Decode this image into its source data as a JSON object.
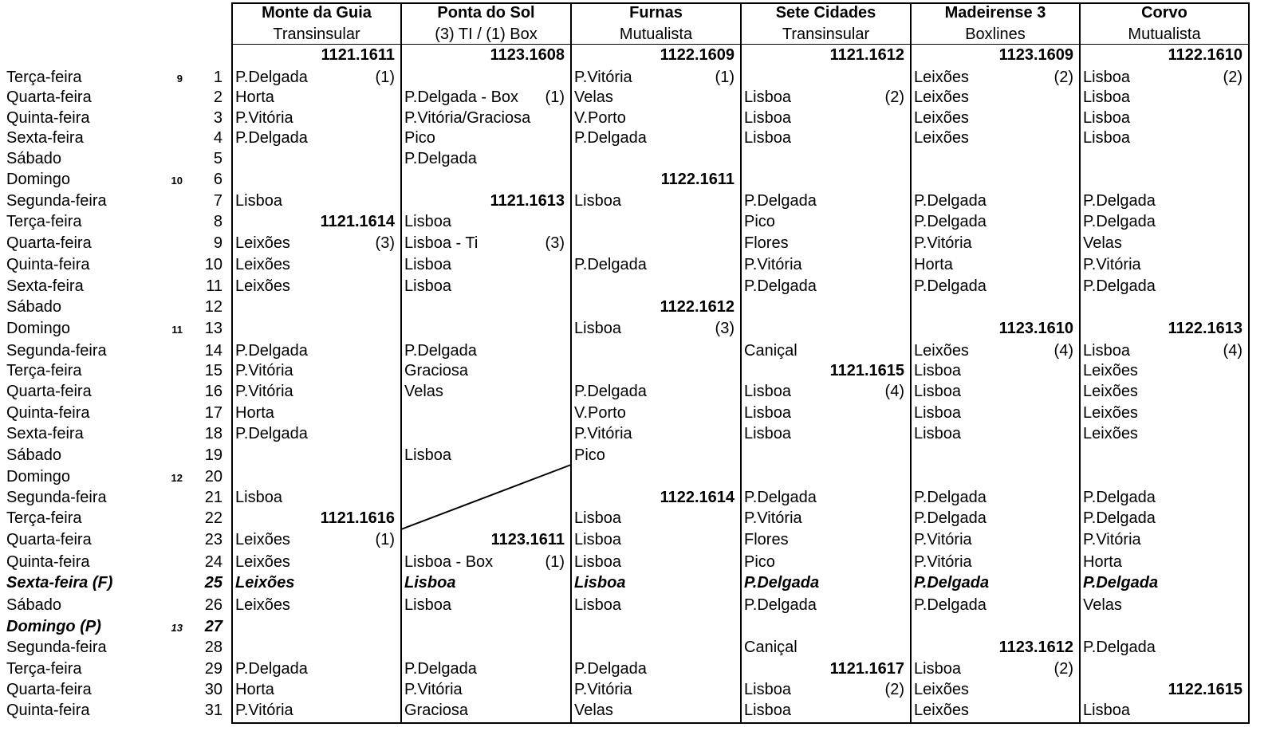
{
  "columns": [
    {
      "name": "Monte da Guia",
      "operator": "Transinsular",
      "voyage": "1121.1611"
    },
    {
      "name": "Ponta do Sol",
      "operator": "(3) TI / (1) Box",
      "voyage": "1123.1608"
    },
    {
      "name": "Furnas",
      "operator": "Mutualista",
      "voyage": "1122.1609"
    },
    {
      "name": "Sete Cidades",
      "operator": "Transinsular",
      "voyage": "1121.1612"
    },
    {
      "name": "Madeirense 3",
      "operator": "Boxlines",
      "voyage": "1123.1609"
    },
    {
      "name": "Corvo",
      "operator": "Mutualista",
      "voyage": "1122.1610"
    }
  ],
  "rows": [
    {
      "weekday": "Terça-feira",
      "week": "9",
      "day": "1",
      "style": "",
      "cells": [
        [
          "P.Delgada",
          "(1)",
          ""
        ],
        [
          "",
          "",
          ""
        ],
        [
          "P.Vitória",
          "(1)",
          ""
        ],
        [
          "",
          "",
          ""
        ],
        [
          "Leixões",
          "(2)",
          ""
        ],
        [
          "Lisboa",
          "(2)",
          ""
        ]
      ]
    },
    {
      "weekday": "Quarta-feira",
      "week": "",
      "day": "2",
      "style": "",
      "cells": [
        [
          "Horta",
          "",
          ""
        ],
        [
          "P.Delgada - Box",
          "(1)",
          ""
        ],
        [
          "Velas",
          "",
          ""
        ],
        [
          "Lisboa",
          "(2)",
          ""
        ],
        [
          "Leixões",
          "",
          ""
        ],
        [
          "Lisboa",
          "",
          ""
        ]
      ]
    },
    {
      "weekday": "Quinta-feira",
      "week": "",
      "day": "3",
      "style": "",
      "cells": [
        [
          "P.Vitória",
          "",
          ""
        ],
        [
          "P.Vitória/Graciosa",
          "",
          ""
        ],
        [
          "V.Porto",
          "",
          ""
        ],
        [
          "Lisboa",
          "",
          ""
        ],
        [
          "Leixões",
          "",
          ""
        ],
        [
          "Lisboa",
          "",
          ""
        ]
      ]
    },
    {
      "weekday": "Sexta-feira",
      "week": "",
      "day": "4",
      "style": "",
      "cells": [
        [
          "P.Delgada",
          "",
          ""
        ],
        [
          "Pico",
          "",
          ""
        ],
        [
          "P.Delgada",
          "",
          ""
        ],
        [
          "Lisboa",
          "",
          ""
        ],
        [
          "Leixões",
          "",
          ""
        ],
        [
          "Lisboa",
          "",
          ""
        ]
      ]
    },
    {
      "weekday": "Sábado",
      "week": "",
      "day": "5",
      "style": "",
      "cells": [
        [
          "",
          "",
          ""
        ],
        [
          "P.Delgada",
          "",
          ""
        ],
        [
          "",
          "",
          ""
        ],
        [
          "",
          "",
          ""
        ],
        [
          "",
          "",
          ""
        ],
        [
          "",
          "",
          ""
        ]
      ]
    },
    {
      "weekday": "Domingo",
      "week": "10",
      "day": "6",
      "style": "",
      "cells": [
        [
          "",
          "",
          ""
        ],
        [
          "",
          "",
          ""
        ],
        [
          "",
          "",
          "1122.1611"
        ],
        [
          "",
          "",
          ""
        ],
        [
          "",
          "",
          ""
        ],
        [
          "",
          "",
          ""
        ]
      ]
    },
    {
      "weekday": "Segunda-feira",
      "week": "",
      "day": "7",
      "style": "",
      "cells": [
        [
          "Lisboa",
          "",
          ""
        ],
        [
          "",
          "",
          "1121.1613"
        ],
        [
          "Lisboa",
          "",
          ""
        ],
        [
          "P.Delgada",
          "",
          ""
        ],
        [
          "P.Delgada",
          "",
          ""
        ],
        [
          "P.Delgada",
          "",
          ""
        ]
      ]
    },
    {
      "weekday": "Terça-feira",
      "week": "",
      "day": "8",
      "style": "",
      "cells": [
        [
          "",
          "",
          "1121.1614"
        ],
        [
          "Lisboa",
          "",
          ""
        ],
        [
          "",
          "",
          ""
        ],
        [
          "Pico",
          "",
          ""
        ],
        [
          "P.Delgada",
          "",
          ""
        ],
        [
          "P.Delgada",
          "",
          ""
        ]
      ]
    },
    {
      "weekday": "Quarta-feira",
      "week": "",
      "day": "9",
      "style": "",
      "cells": [
        [
          "Leixões",
          "(3)",
          ""
        ],
        [
          "Lisboa - Ti",
          "(3)",
          ""
        ],
        [
          "",
          "",
          ""
        ],
        [
          "Flores",
          "",
          ""
        ],
        [
          "P.Vitória",
          "",
          ""
        ],
        [
          "Velas",
          "",
          ""
        ]
      ]
    },
    {
      "weekday": "Quinta-feira",
      "week": "",
      "day": "10",
      "style": "",
      "cells": [
        [
          "Leixões",
          "",
          ""
        ],
        [
          "Lisboa",
          "",
          ""
        ],
        [
          "P.Delgada",
          "",
          ""
        ],
        [
          "P.Vitória",
          "",
          ""
        ],
        [
          "Horta",
          "",
          ""
        ],
        [
          "P.Vitória",
          "",
          ""
        ]
      ]
    },
    {
      "weekday": "Sexta-feira",
      "week": "",
      "day": "11",
      "style": "",
      "cells": [
        [
          "Leixões",
          "",
          ""
        ],
        [
          "Lisboa",
          "",
          ""
        ],
        [
          "",
          "",
          ""
        ],
        [
          "P.Delgada",
          "",
          ""
        ],
        [
          "P.Delgada",
          "",
          ""
        ],
        [
          "P.Delgada",
          "",
          ""
        ]
      ]
    },
    {
      "weekday": "Sábado",
      "week": "",
      "day": "12",
      "style": "",
      "cells": [
        [
          "",
          "",
          ""
        ],
        [
          "",
          "",
          ""
        ],
        [
          "",
          "",
          "1122.1612"
        ],
        [
          "",
          "",
          ""
        ],
        [
          "",
          "",
          ""
        ],
        [
          "",
          "",
          ""
        ]
      ]
    },
    {
      "weekday": "Domingo",
      "week": "11",
      "day": "13",
      "style": "",
      "cells": [
        [
          "",
          "",
          ""
        ],
        [
          "",
          "",
          ""
        ],
        [
          "Lisboa",
          "(3)",
          ""
        ],
        [
          "",
          "",
          ""
        ],
        [
          "",
          "",
          "1123.1610"
        ],
        [
          "",
          "",
          "1122.1613"
        ]
      ]
    },
    {
      "weekday": "Segunda-feira",
      "week": "",
      "day": "14",
      "style": "",
      "cells": [
        [
          "P.Delgada",
          "",
          ""
        ],
        [
          "P.Delgada",
          "",
          ""
        ],
        [
          "",
          "",
          ""
        ],
        [
          "Caniçal",
          "",
          ""
        ],
        [
          "Leixões",
          "(4)",
          ""
        ],
        [
          "Lisboa",
          "(4)",
          ""
        ]
      ]
    },
    {
      "weekday": "Terça-feira",
      "week": "",
      "day": "15",
      "style": "",
      "cells": [
        [
          "P.Vitória",
          "",
          ""
        ],
        [
          "Graciosa",
          "",
          ""
        ],
        [
          "",
          "",
          ""
        ],
        [
          "",
          "",
          "1121.1615"
        ],
        [
          "Lisboa",
          "",
          ""
        ],
        [
          "Leixões",
          "",
          ""
        ]
      ]
    },
    {
      "weekday": "Quarta-feira",
      "week": "",
      "day": "16",
      "style": "",
      "cells": [
        [
          "P.Vitória",
          "",
          ""
        ],
        [
          "Velas",
          "",
          ""
        ],
        [
          "P.Delgada",
          "",
          ""
        ],
        [
          "Lisboa",
          "(4)",
          ""
        ],
        [
          "Lisboa",
          "",
          ""
        ],
        [
          "Leixões",
          "",
          ""
        ]
      ]
    },
    {
      "weekday": "Quinta-feira",
      "week": "",
      "day": "17",
      "style": "",
      "cells": [
        [
          "Horta",
          "",
          ""
        ],
        [
          "",
          "",
          ""
        ],
        [
          "V.Porto",
          "",
          ""
        ],
        [
          "Lisboa",
          "",
          ""
        ],
        [
          "Lisboa",
          "",
          ""
        ],
        [
          "Leixões",
          "",
          ""
        ]
      ]
    },
    {
      "weekday": "Sexta-feira",
      "week": "",
      "day": "18",
      "style": "",
      "cells": [
        [
          "P.Delgada",
          "",
          ""
        ],
        [
          "",
          "",
          ""
        ],
        [
          "P.Vitória",
          "",
          ""
        ],
        [
          "Lisboa",
          "",
          ""
        ],
        [
          "Lisboa",
          "",
          ""
        ],
        [
          "Leixões",
          "",
          ""
        ]
      ]
    },
    {
      "weekday": "Sábado",
      "week": "",
      "day": "19",
      "style": "",
      "cells": [
        [
          "",
          "",
          ""
        ],
        [
          "Lisboa",
          "",
          ""
        ],
        [
          "Pico",
          "",
          ""
        ],
        [
          "",
          "",
          ""
        ],
        [
          "",
          "",
          ""
        ],
        [
          "",
          "",
          ""
        ]
      ]
    },
    {
      "weekday": "Domingo",
      "week": "12",
      "day": "20",
      "style": "",
      "cells": [
        [
          "",
          "",
          ""
        ],
        [
          "",
          "",
          ""
        ],
        [
          "",
          "",
          ""
        ],
        [
          "",
          "",
          ""
        ],
        [
          "",
          "",
          ""
        ],
        [
          "",
          "",
          ""
        ]
      ]
    },
    {
      "weekday": "Segunda-feira",
      "week": "",
      "day": "21",
      "style": "",
      "cells": [
        [
          "Lisboa",
          "",
          ""
        ],
        [
          "",
          "",
          ""
        ],
        [
          "",
          "",
          "1122.1614"
        ],
        [
          "P.Delgada",
          "",
          ""
        ],
        [
          "P.Delgada",
          "",
          ""
        ],
        [
          "P.Delgada",
          "",
          ""
        ]
      ]
    },
    {
      "weekday": "Terça-feira",
      "week": "",
      "day": "22",
      "style": "",
      "cells": [
        [
          "",
          "",
          "1121.1616"
        ],
        [
          "",
          "",
          ""
        ],
        [
          "Lisboa",
          "",
          ""
        ],
        [
          "P.Vitória",
          "",
          ""
        ],
        [
          "P.Delgada",
          "",
          ""
        ],
        [
          "P.Delgada",
          "",
          ""
        ]
      ]
    },
    {
      "weekday": "Quarta-feira",
      "week": "",
      "day": "23",
      "style": "",
      "cells": [
        [
          "Leixões",
          "(1)",
          ""
        ],
        [
          "",
          "",
          "1123.1611"
        ],
        [
          "Lisboa",
          "",
          ""
        ],
        [
          "Flores",
          "",
          ""
        ],
        [
          "P.Vitória",
          "",
          ""
        ],
        [
          "P.Vitória",
          "",
          ""
        ]
      ]
    },
    {
      "weekday": "Quinta-feira",
      "week": "",
      "day": "24",
      "style": "",
      "cells": [
        [
          "Leixões",
          "",
          ""
        ],
        [
          "Lisboa - Box",
          "(1)",
          ""
        ],
        [
          "Lisboa",
          "",
          ""
        ],
        [
          "Pico",
          "",
          ""
        ],
        [
          "P.Vitória",
          "",
          ""
        ],
        [
          "Horta",
          "",
          ""
        ]
      ]
    },
    {
      "weekday": "Sexta-feira  (F)",
      "week": "",
      "day": "25",
      "style": "holiday",
      "cells": [
        [
          "Leixões",
          "",
          ""
        ],
        [
          "Lisboa",
          "",
          ""
        ],
        [
          "Lisboa",
          "",
          ""
        ],
        [
          "P.Delgada",
          "",
          ""
        ],
        [
          "P.Delgada",
          "",
          ""
        ],
        [
          "P.Delgada",
          "",
          ""
        ]
      ]
    },
    {
      "weekday": "Sábado",
      "week": "",
      "day": "26",
      "style": "",
      "cells": [
        [
          "Leixões",
          "",
          ""
        ],
        [
          "Lisboa",
          "",
          ""
        ],
        [
          "Lisboa",
          "",
          ""
        ],
        [
          "P.Delgada",
          "",
          ""
        ],
        [
          "P.Delgada",
          "",
          ""
        ],
        [
          "Velas",
          "",
          ""
        ]
      ]
    },
    {
      "weekday": "Domingo (P)",
      "week": "13",
      "day": "27",
      "style": "holiday",
      "cells": [
        [
          "",
          "",
          ""
        ],
        [
          "",
          "",
          ""
        ],
        [
          "",
          "",
          ""
        ],
        [
          "",
          "",
          ""
        ],
        [
          "",
          "",
          ""
        ],
        [
          "",
          "",
          ""
        ]
      ]
    },
    {
      "weekday": "Segunda-feira",
      "week": "",
      "day": "28",
      "style": "",
      "cells": [
        [
          "",
          "",
          ""
        ],
        [
          "",
          "",
          ""
        ],
        [
          "",
          "",
          ""
        ],
        [
          "Caniçal",
          "",
          ""
        ],
        [
          "",
          "",
          "1123.1612"
        ],
        [
          "P.Delgada",
          "",
          ""
        ]
      ]
    },
    {
      "weekday": "Terça-feira",
      "week": "",
      "day": "29",
      "style": "",
      "cells": [
        [
          "P.Delgada",
          "",
          ""
        ],
        [
          "P.Delgada",
          "",
          ""
        ],
        [
          "P.Delgada",
          "",
          ""
        ],
        [
          "",
          "",
          "1121.1617"
        ],
        [
          "Lisboa",
          "(2)",
          ""
        ],
        [
          "",
          "",
          ""
        ]
      ]
    },
    {
      "weekday": "Quarta-feira",
      "week": "",
      "day": "30",
      "style": "",
      "cells": [
        [
          "Horta",
          "",
          ""
        ],
        [
          "P.Vitória",
          "",
          ""
        ],
        [
          "P.Vitória",
          "",
          ""
        ],
        [
          "Lisboa",
          "(2)",
          ""
        ],
        [
          "Leixões",
          "",
          ""
        ],
        [
          "",
          "",
          "1122.1615"
        ]
      ]
    },
    {
      "weekday": "Quinta-feira",
      "week": "",
      "day": "31",
      "style": "",
      "cells": [
        [
          "P.Vitória",
          "",
          ""
        ],
        [
          "Graciosa",
          "",
          ""
        ],
        [
          "Velas",
          "",
          ""
        ],
        [
          "Lisboa",
          "",
          ""
        ],
        [
          "Leixões",
          "",
          ""
        ],
        [
          "Lisboa",
          "",
          ""
        ]
      ]
    }
  ]
}
